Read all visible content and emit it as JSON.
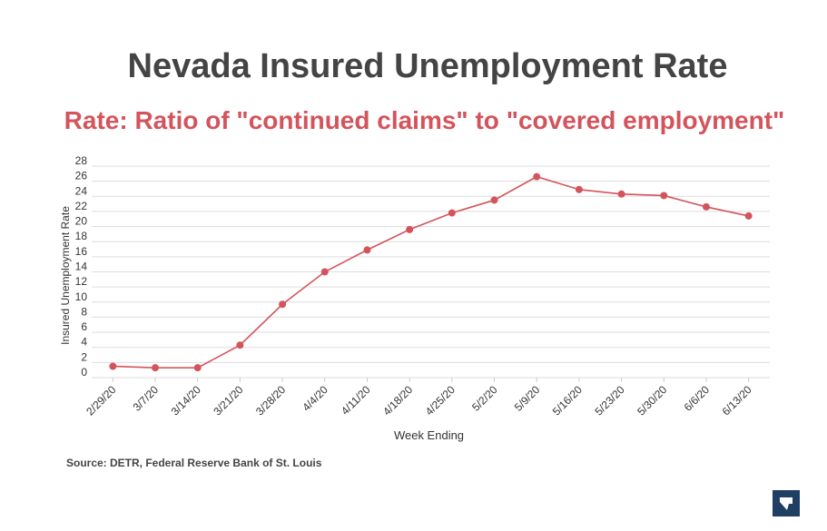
{
  "header": {
    "title": "Nevada Insured Unemployment Rate",
    "subtitle": "Rate: Ratio of \"continued claims\" to \"covered employment\""
  },
  "footer": {
    "source": "Source: DETR, Federal Reserve Bank of St. Louis"
  },
  "colors": {
    "series": "#d4545c",
    "title": "#444444",
    "grid": "#dddddd",
    "logo_bg": "#1f3f63"
  },
  "logo": {
    "icon": "nevada-state-icon"
  },
  "chart_data": {
    "type": "line",
    "title": "Nevada Insured Unemployment Rate",
    "subtitle": "Rate: Ratio of \"continued claims\" to \"covered employment\"",
    "xlabel": "Week Ending",
    "ylabel": "Insured Unemployment Rate",
    "ylim": [
      0,
      28
    ],
    "yticks": [
      0,
      2,
      4,
      6,
      8,
      10,
      12,
      14,
      16,
      18,
      20,
      22,
      24,
      26,
      28
    ],
    "grid": true,
    "categories": [
      "2/29/20",
      "3/7/20",
      "3/14/20",
      "3/21/20",
      "3/28/20",
      "4/4/20",
      "4/11/20",
      "4/18/20",
      "4/25/20",
      "5/2/20",
      "5/9/20",
      "5/16/20",
      "5/23/20",
      "5/30/20",
      "6/6/20",
      "6/13/20"
    ],
    "series": [
      {
        "values": [
          1.5,
          1.3,
          1.3,
          4.3,
          9.7,
          14.0,
          16.9,
          19.6,
          21.8,
          23.5,
          26.6,
          24.9,
          24.3,
          24.1,
          22.6,
          21.4
        ]
      }
    ]
  }
}
